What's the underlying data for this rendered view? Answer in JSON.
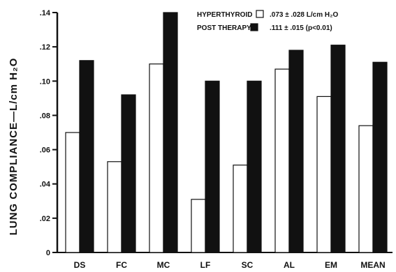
{
  "chart_data": {
    "type": "bar",
    "categories": [
      "DS",
      "FC",
      "MC",
      "LF",
      "SC",
      "AL",
      "EM",
      "MEAN"
    ],
    "series": [
      {
        "name": "HYPERTHYROID",
        "values": [
          0.07,
          0.053,
          0.11,
          0.031,
          0.051,
          0.107,
          0.091,
          0.074
        ],
        "color": "#ffffff"
      },
      {
        "name": "POST THERAPY",
        "values": [
          0.112,
          0.092,
          0.14,
          0.1,
          0.1,
          0.118,
          0.121,
          0.111
        ],
        "color": "#111111"
      }
    ],
    "ylabel": "LUNG  COMPLIANCE—L/cm H₂O",
    "ylim": [
      0,
      0.14
    ],
    "yticks": [
      0,
      0.02,
      0.04,
      0.06,
      0.08,
      0.1,
      0.12,
      0.14
    ],
    "ytick_labels": [
      "0",
      ".02",
      ".04",
      ".06",
      ".08",
      ".10",
      ".12",
      ".14"
    ],
    "legend": [
      {
        "label": "HYPERTHYROID",
        "stat": ".073 ± .028  L/cm H₂O"
      },
      {
        "label": "POST THERAPY",
        "stat": ".111 ± .015   (p<0.01)"
      }
    ],
    "legend_position": "top-right",
    "grid": false
  }
}
